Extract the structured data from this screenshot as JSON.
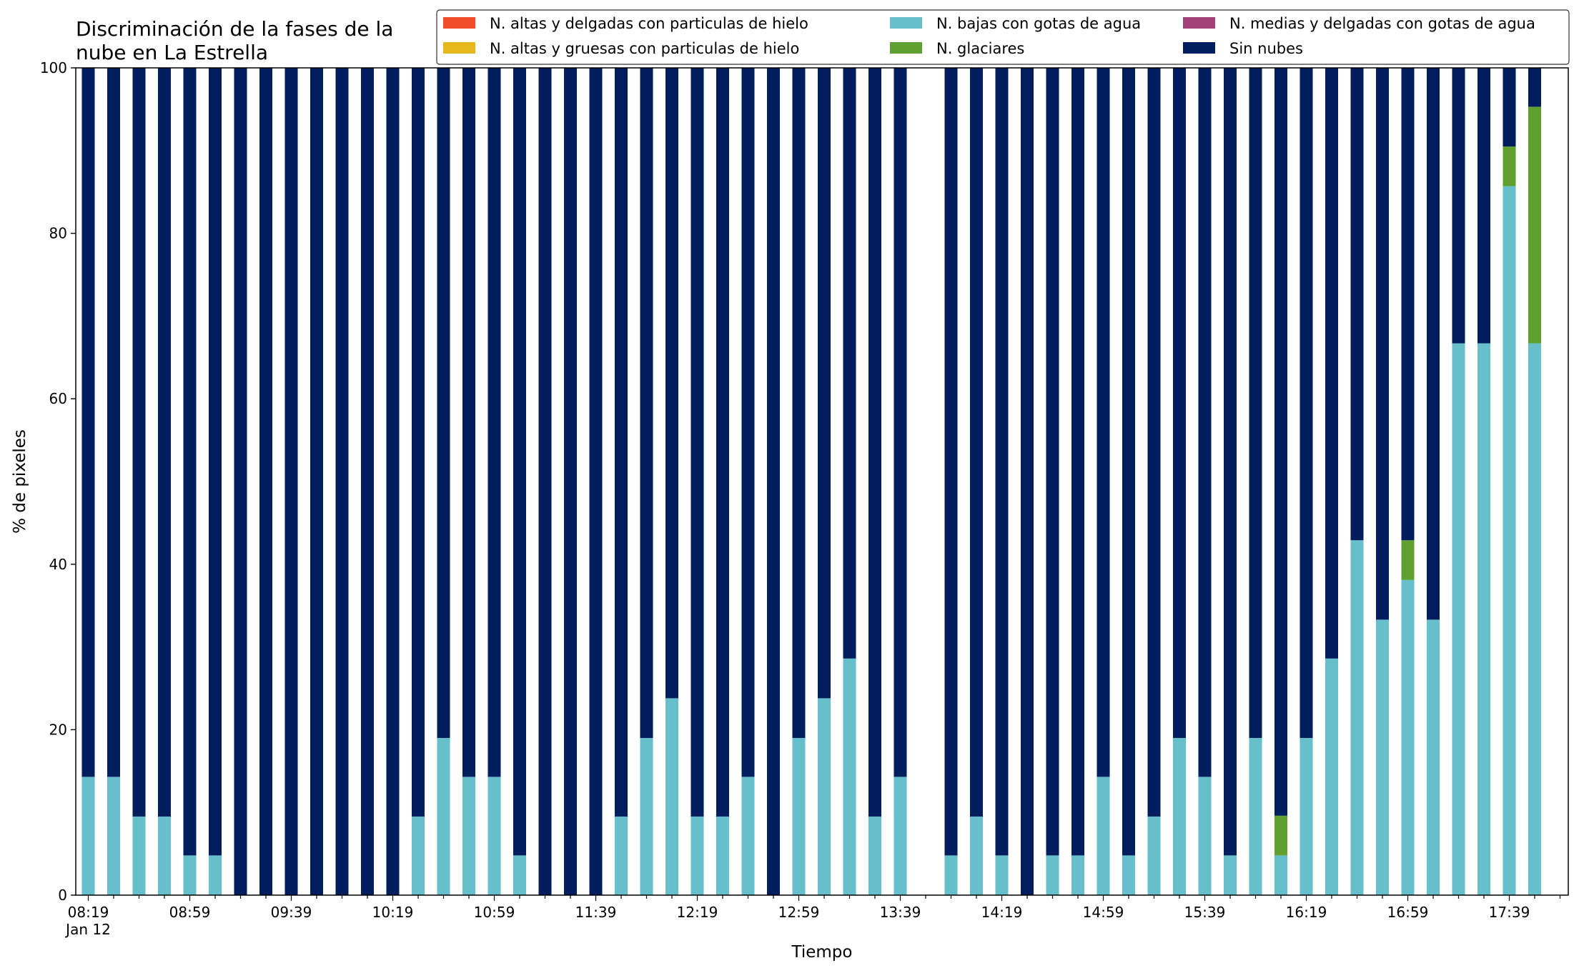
{
  "chart_data": {
    "type": "bar",
    "stacked": true,
    "title_lines": [
      "Discriminación de la fases de la",
      "nube en La Estrella"
    ],
    "xlabel": "Tiempo",
    "ylabel": "% de pixeles",
    "ylim": [
      0,
      100
    ],
    "yticks": [
      "0",
      "20",
      "40",
      "60",
      "80",
      "100"
    ],
    "xtick_labels": [
      "08:19",
      "08:59",
      "09:39",
      "10:19",
      "10:59",
      "11:39",
      "12:19",
      "12:59",
      "13:39",
      "14:19",
      "14:59",
      "15:39",
      "16:19",
      "16:59",
      "17:39"
    ],
    "xtick_sublabel": "Jan 12",
    "legend_position": "top-right",
    "legend_columns": 3,
    "categories": [
      "08:19",
      "08:29",
      "08:39",
      "08:49",
      "08:59",
      "09:09",
      "09:19",
      "09:29",
      "09:39",
      "09:49",
      "09:59",
      "10:09",
      "10:19",
      "10:29",
      "10:39",
      "10:49",
      "10:59",
      "11:09",
      "11:19",
      "11:29",
      "11:39",
      "11:49",
      "11:59",
      "12:09",
      "12:19",
      "12:29",
      "12:39",
      "12:49",
      "12:59",
      "13:09",
      "13:19",
      "13:29",
      "13:39",
      "13:49",
      "13:59",
      "14:09",
      "14:19",
      "14:29",
      "14:39",
      "14:49",
      "14:59",
      "15:09",
      "15:19",
      "15:29",
      "15:39",
      "15:49",
      "15:59",
      "16:09",
      "16:19",
      "16:29",
      "16:39",
      "16:49",
      "16:59",
      "17:09",
      "17:19",
      "17:29",
      "17:39",
      "17:49"
    ],
    "series": [
      {
        "name": "N. altas y delgadas con particulas de hielo",
        "color": "#f04d2b",
        "values": [
          0,
          0,
          0,
          0,
          0,
          0,
          0,
          0,
          0,
          0,
          0,
          0,
          0,
          0,
          0,
          0,
          0,
          0,
          0,
          0,
          0,
          0,
          0,
          0,
          0,
          0,
          0,
          0,
          0,
          0,
          0,
          0,
          0,
          null,
          0,
          0,
          0,
          0,
          0,
          0,
          0,
          0,
          0,
          0,
          0,
          0,
          0,
          0,
          0,
          0,
          0,
          0,
          0,
          0,
          0,
          0,
          0,
          0
        ]
      },
      {
        "name": "N. altas y gruesas con particulas de hielo",
        "color": "#e6b81c",
        "values": [
          0,
          0,
          0,
          0,
          0,
          0,
          0,
          0,
          0,
          0,
          0,
          0,
          0,
          0,
          0,
          0,
          0,
          0,
          0,
          0,
          0,
          0,
          0,
          0,
          0,
          0,
          0,
          0,
          0,
          0,
          0,
          0,
          0,
          null,
          0,
          0,
          0,
          0,
          0,
          0,
          0,
          0,
          0,
          0,
          0,
          0,
          0,
          0,
          0,
          0,
          0,
          0,
          0,
          0,
          0,
          0,
          0,
          0
        ]
      },
      {
        "name": "N. bajas con gotas de agua",
        "color": "#66bfca",
        "values": [
          14.3,
          14.3,
          9.5,
          9.5,
          4.8,
          4.8,
          0,
          0,
          0,
          0,
          0,
          0,
          0,
          9.5,
          19.0,
          14.3,
          14.3,
          4.8,
          0,
          0,
          0,
          9.5,
          19.0,
          23.8,
          9.5,
          9.5,
          14.3,
          0,
          19.0,
          23.8,
          28.6,
          9.5,
          14.3,
          null,
          4.8,
          9.5,
          4.8,
          0,
          4.8,
          4.8,
          14.3,
          4.8,
          9.5,
          19.0,
          14.3,
          4.8,
          19.0,
          4.8,
          19.0,
          28.6,
          42.9,
          33.3,
          38.1,
          33.3,
          66.7,
          66.7,
          85.7,
          66.7
        ]
      },
      {
        "name": "N. glaciares",
        "color": "#60a030",
        "values": [
          0,
          0,
          0,
          0,
          0,
          0,
          0,
          0,
          0,
          0,
          0,
          0,
          0,
          0,
          0,
          0,
          0,
          0,
          0,
          0,
          0,
          0,
          0,
          0,
          0,
          0,
          0,
          0,
          0,
          0,
          0,
          0,
          0,
          null,
          0,
          0,
          0,
          0,
          0,
          0,
          0,
          0,
          0,
          0,
          0,
          0,
          0,
          4.8,
          0,
          0,
          0,
          0,
          4.8,
          0,
          0,
          0,
          4.8,
          28.6
        ]
      },
      {
        "name": "N. medias y delgadas con gotas de agua",
        "color": "#a3427a",
        "values": [
          0,
          0,
          0,
          0,
          0,
          0,
          0,
          0,
          0,
          0,
          0,
          0,
          0,
          0,
          0,
          0,
          0,
          0,
          0,
          0,
          0,
          0,
          0,
          0,
          0,
          0,
          0,
          0,
          0,
          0,
          0,
          0,
          0,
          null,
          0,
          0,
          0,
          0,
          0,
          0,
          0,
          0,
          0,
          0,
          0,
          0,
          0,
          0,
          0,
          0,
          0,
          0,
          0,
          0,
          0,
          0,
          0,
          0
        ]
      },
      {
        "name": "Sin nubes",
        "color": "#001e5e",
        "values": [
          85.7,
          85.7,
          90.5,
          90.5,
          95.2,
          95.2,
          100,
          100,
          100,
          100,
          100,
          100,
          100,
          90.5,
          81.0,
          85.7,
          85.7,
          95.2,
          100,
          100,
          100,
          90.5,
          81.0,
          76.2,
          90.5,
          90.5,
          85.7,
          100,
          81.0,
          76.2,
          71.4,
          90.5,
          85.7,
          null,
          95.2,
          90.5,
          95.2,
          100,
          95.2,
          95.2,
          85.7,
          95.2,
          90.5,
          81.0,
          85.7,
          95.2,
          81.0,
          90.4,
          81.0,
          71.4,
          57.1,
          66.7,
          57.1,
          66.7,
          33.3,
          33.3,
          9.5,
          4.7
        ]
      }
    ],
    "stack_order": [
      2,
      3,
      5
    ]
  }
}
